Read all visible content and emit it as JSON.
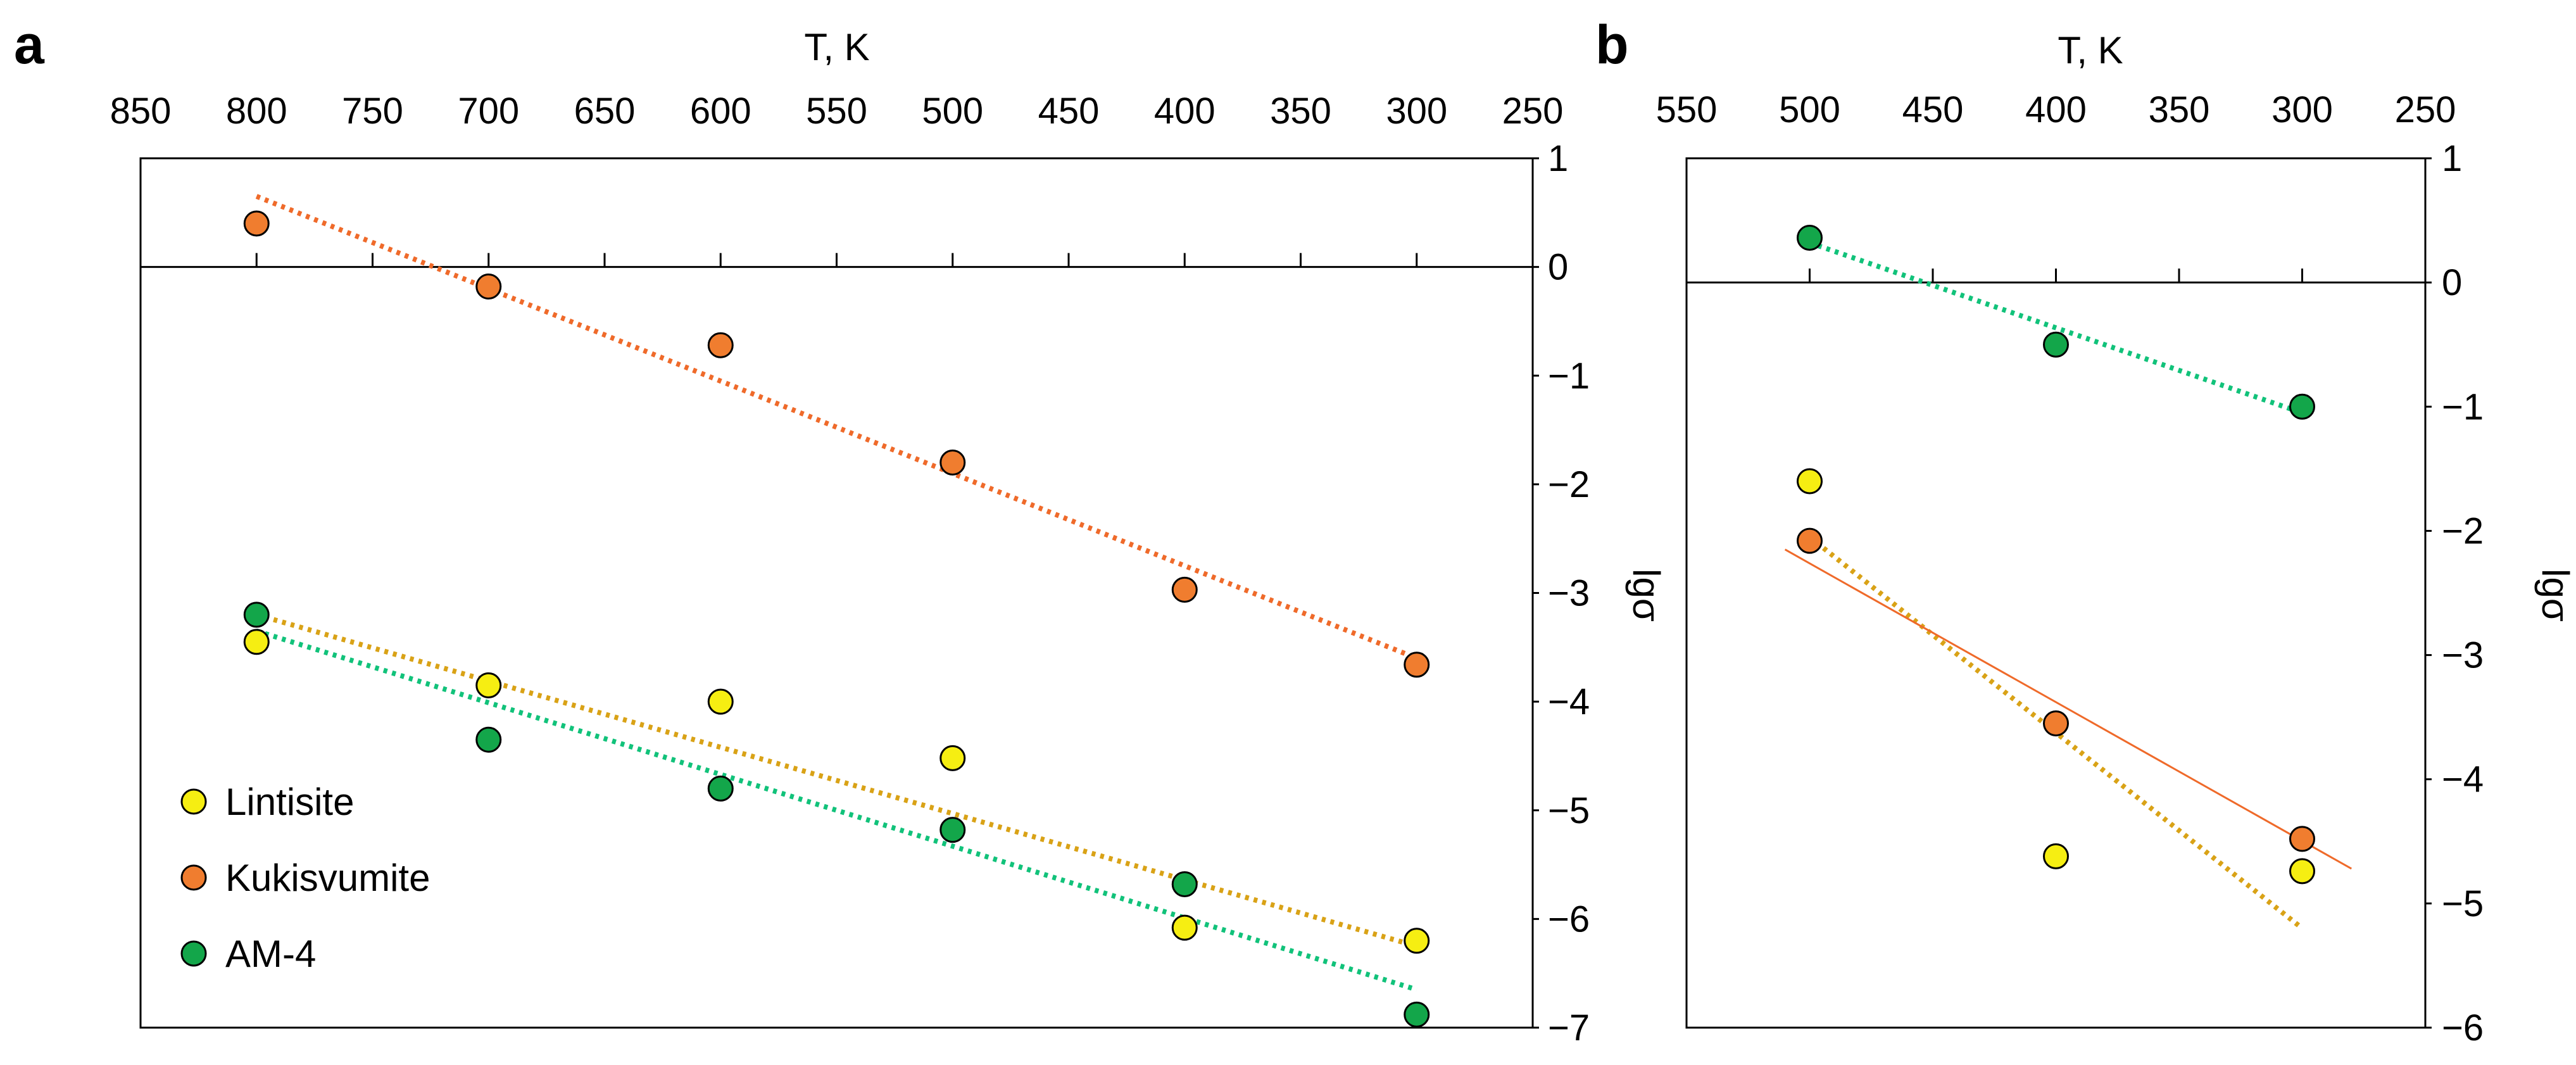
{
  "chart_data": [
    {
      "panel_label": "a",
      "type": "scatter",
      "xlabel": "T, K",
      "ylabel": "lgσ",
      "xlim": [
        850,
        250
      ],
      "ylim": [
        -7,
        1
      ],
      "x_ticks": [
        "850",
        "800",
        "750",
        "700",
        "650",
        "600",
        "550",
        "500",
        "450",
        "400",
        "350",
        "300",
        "250"
      ],
      "y_ticks": [
        "1",
        "0",
        "−1",
        "−2",
        "−3",
        "−4",
        "−5",
        "−6",
        "−7"
      ],
      "legend": {
        "placement": "bottom-left"
      },
      "series": [
        {
          "name": "Lintisite",
          "color": "#f6ee12",
          "x": [
            800,
            700,
            600,
            500,
            400,
            300
          ],
          "y": [
            -3.45,
            -3.85,
            -4.0,
            -4.52,
            -6.08,
            -6.2
          ]
        },
        {
          "name": "Kukisvumite",
          "color": "#f07d2f",
          "x": [
            800,
            700,
            600,
            500,
            400,
            300
          ],
          "y": [
            0.4,
            -0.18,
            -0.72,
            -1.8,
            -2.97,
            -3.66
          ]
        },
        {
          "name": "AM-4",
          "color": "#13a64a",
          "x": [
            800,
            700,
            600,
            500,
            400,
            300
          ],
          "y": [
            -3.2,
            -4.35,
            -4.8,
            -5.18,
            -5.68,
            -6.88
          ]
        }
      ],
      "trendlines": [
        {
          "series": "Lintisite",
          "color": "#d9a216",
          "style": "dotted",
          "x": [
            800,
            300
          ],
          "y": [
            -3.2,
            -6.25
          ]
        },
        {
          "series": "Kukisvumite",
          "color": "#ef6a2a",
          "style": "dotted",
          "x": [
            800,
            300
          ],
          "y": [
            0.65,
            -3.6
          ]
        },
        {
          "series": "AM-4",
          "color": "#11c27a",
          "style": "dotted",
          "x": [
            800,
            300
          ],
          "y": [
            -3.35,
            -6.65
          ]
        }
      ]
    },
    {
      "panel_label": "b",
      "type": "scatter",
      "xlabel": "T, K",
      "ylabel": "lgσ",
      "xlim": [
        550,
        250
      ],
      "ylim": [
        -6,
        1
      ],
      "x_ticks": [
        "550",
        "500",
        "450",
        "400",
        "350",
        "300",
        "250"
      ],
      "y_ticks": [
        "1",
        "0",
        "−1",
        "−2",
        "−3",
        "−4",
        "−5",
        "−6"
      ],
      "series": [
        {
          "name": "Lintisite",
          "color": "#f6ee12",
          "x": [
            500,
            400,
            300
          ],
          "y": [
            -1.6,
            -4.62,
            -4.74
          ]
        },
        {
          "name": "Kukisvumite",
          "color": "#f07d2f",
          "x": [
            500,
            400,
            300
          ],
          "y": [
            -2.08,
            -3.55,
            -4.48
          ]
        },
        {
          "name": "AM-4",
          "color": "#13a64a",
          "x": [
            500,
            400,
            300
          ],
          "y": [
            0.36,
            -0.5,
            -1.0
          ]
        }
      ],
      "trendlines": [
        {
          "series": "AM-4",
          "color": "#11c27a",
          "style": "dotted",
          "x": [
            500,
            300
          ],
          "y": [
            0.32,
            -1.05
          ]
        },
        {
          "series": "Lintisite",
          "color": "#d9a216",
          "style": "dotted",
          "x": [
            500,
            300
          ],
          "y": [
            -2.05,
            -5.2
          ]
        },
        {
          "series": "Kukisvumite",
          "color": "#ef6a2a",
          "style": "solid-thin",
          "x": [
            510,
            280
          ],
          "y": [
            -2.15,
            -4.72
          ]
        }
      ]
    }
  ]
}
